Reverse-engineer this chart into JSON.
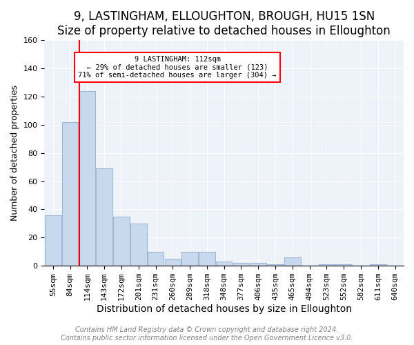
{
  "title": "9, LASTINGHAM, ELLOUGHTON, BROUGH, HU15 1SN",
  "subtitle": "Size of property relative to detached houses in Elloughton",
  "xlabel": "Distribution of detached houses by size in Elloughton",
  "ylabel": "Number of detached properties",
  "categories": [
    "55sqm",
    "84sqm",
    "114sqm",
    "143sqm",
    "172sqm",
    "201sqm",
    "231sqm",
    "260sqm",
    "289sqm",
    "318sqm",
    "348sqm",
    "377sqm",
    "406sqm",
    "435sqm",
    "465sqm",
    "494sqm",
    "523sqm",
    "552sqm",
    "582sqm",
    "611sqm",
    "640sqm"
  ],
  "values": [
    36,
    102,
    124,
    69,
    35,
    30,
    10,
    5,
    10,
    10,
    3,
    2,
    2,
    1,
    6,
    0,
    1,
    1,
    0,
    1,
    0
  ],
  "bar_color": "#c8d9ed",
  "bar_edge_color": "#a0b8d8",
  "property_bin_index": 2,
  "annotation_line1": "9 LASTINGHAM: 112sqm",
  "annotation_line2": "← 29% of detached houses are smaller (123)",
  "annotation_line3": "71% of semi-detached houses are larger (304) →",
  "vline_color": "red",
  "footer_text": "Contains HM Land Registry data © Crown copyright and database right 2024.\nContains public sector information licensed under the Open Government Licence v3.0.",
  "ylim": [
    0,
    160
  ],
  "title_fontsize": 12,
  "subtitle_fontsize": 11,
  "xlabel_fontsize": 10,
  "ylabel_fontsize": 9,
  "tick_fontsize": 8,
  "footer_fontsize": 7,
  "background_color": "#eef2f9"
}
